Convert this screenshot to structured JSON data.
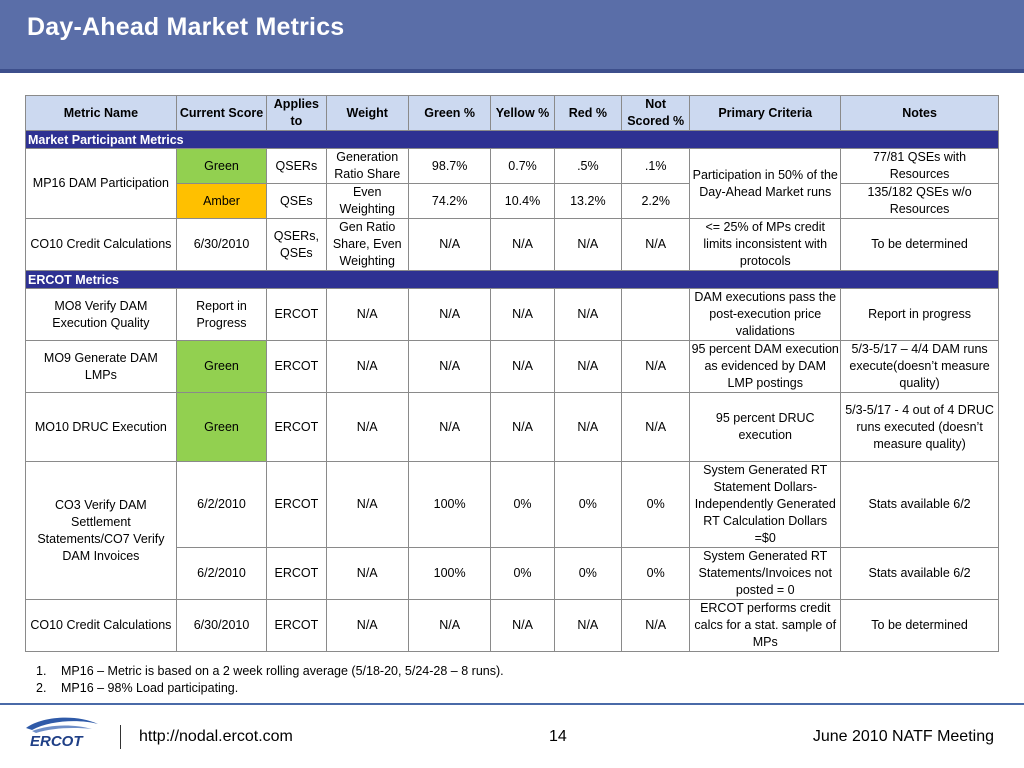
{
  "slide": {
    "title": "Day-Ahead Market Metrics"
  },
  "table": {
    "headers": [
      "Metric Name",
      "Current Score",
      "Applies to",
      "Weight",
      "Green %",
      "Yellow %",
      "Red %",
      "Not Scored %",
      "Primary Criteria",
      "Notes"
    ],
    "sections": {
      "market_participant": "Market Participant Metrics",
      "ercot": "ERCOT Metrics"
    },
    "mp16": {
      "name": "MP16 DAM Participation",
      "criteria": "Participation in 50% of the Day-Ahead Market runs",
      "row1": {
        "score": "Green",
        "applies": "QSERs",
        "weight": "Generation Ratio Share",
        "green": "98.7%",
        "yellow": "0.7%",
        "red": ".5%",
        "not_scored": ".1%",
        "notes": "77/81 QSEs with Resources"
      },
      "row2": {
        "score": "Amber",
        "applies": "QSEs",
        "weight": "Even Weighting",
        "green": "74.2%",
        "yellow": "10.4%",
        "red": "13.2%",
        "not_scored": "2.2%",
        "notes": "135/182 QSEs w/o Resources"
      }
    },
    "co10_mp": {
      "name": "CO10 Credit Calculations",
      "score": "6/30/2010",
      "applies": "QSERs, QSEs",
      "weight": "Gen Ratio Share, Even Weighting",
      "green": "N/A",
      "yellow": "N/A",
      "red": "N/A",
      "not_scored": "N/A",
      "criteria": "<= 25% of MPs credit limits inconsistent with protocols",
      "notes": "To be determined"
    },
    "mo8": {
      "name": "MO8 Verify DAM Execution Quality",
      "score": "Report in Progress",
      "applies": "ERCOT",
      "weight": "N/A",
      "green": "N/A",
      "yellow": "N/A",
      "red": "N/A",
      "not_scored": "",
      "criteria": "DAM executions pass the post-execution price validations",
      "notes": "Report in progress"
    },
    "mo9": {
      "name": "MO9 Generate DAM LMPs",
      "score": "Green",
      "applies": "ERCOT",
      "weight": "N/A",
      "green": "N/A",
      "yellow": "N/A",
      "red": "N/A",
      "not_scored": "N/A",
      "criteria": "95 percent DAM execution as evidenced by DAM LMP postings",
      "notes": "5/3-5/17 – 4/4 DAM runs execute(doesn’t measure quality)"
    },
    "mo10": {
      "name": "MO10 DRUC Execution",
      "score": "Green",
      "applies": "ERCOT",
      "weight": "N/A",
      "green": "N/A",
      "yellow": "N/A",
      "red": "N/A",
      "not_scored": "N/A",
      "criteria": "95 percent DRUC execution",
      "notes": "5/3-5/17 -  4 out of 4 DRUC runs executed (doesn’t measure quality)"
    },
    "co3": {
      "name": "CO3 Verify DAM Settlement Statements/CO7 Verify DAM Invoices",
      "row1": {
        "score": "6/2/2010",
        "applies": "ERCOT",
        "weight": "N/A",
        "green": "100%",
        "yellow": "0%",
        "red": "0%",
        "not_scored": "0%",
        "criteria": "System Generated RT Statement Dollars- Independently Generated RT Calculation Dollars =$0",
        "notes": "Stats available 6/2"
      },
      "row2": {
        "score": "6/2/2010",
        "applies": "ERCOT",
        "weight": "N/A",
        "green": "100%",
        "yellow": "0%",
        "red": "0%",
        "not_scored": "0%",
        "criteria": "System Generated RT Statements/Invoices not posted = 0",
        "notes": "Stats available 6/2"
      }
    },
    "co10_ercot": {
      "name": "CO10 Credit Calculations",
      "score": "6/30/2010",
      "applies": "ERCOT",
      "weight": "N/A",
      "green": "N/A",
      "yellow": "N/A",
      "red": "N/A",
      "not_scored": "N/A",
      "criteria": "ERCOT performs credit calcs for a stat. sample of MPs",
      "notes": "To be determined"
    }
  },
  "footnotes": [
    {
      "num": "1.",
      "text": "MP16 – Metric is based on a 2 week rolling average (5/18-20, 5/24-28 – 8 runs)."
    },
    {
      "num": "2.",
      "text": "MP16 – 98% Load participating."
    }
  ],
  "footer": {
    "logo_text": "ERCOT",
    "url": "http://nodal.ercot.com",
    "page": "14",
    "meeting": "June 2010 NATF Meeting"
  },
  "colors": {
    "title_bar": "#5a6ea8",
    "section_bar": "#2e3192",
    "header_fill": "#ccd9f0",
    "green": "#92d050",
    "amber": "#ffc000"
  }
}
